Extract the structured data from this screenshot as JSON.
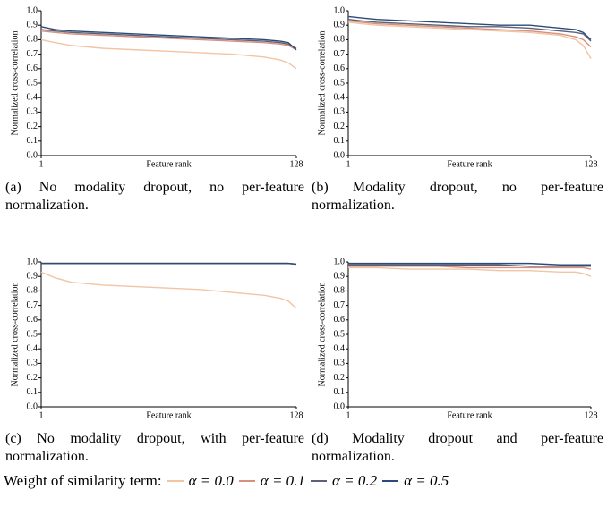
{
  "legend_title": "Weight of similarity term:",
  "chart_data": [
    {
      "type": "line",
      "caption": "(a) No modality dropout, no per-feature normalization.",
      "xlabel": "Feature rank",
      "ylabel": "Normalized cross-correlation",
      "x": [
        1,
        8,
        16,
        32,
        48,
        64,
        80,
        96,
        112,
        120,
        124,
        128
      ],
      "xlim": [
        1,
        128
      ],
      "xticks": [
        1,
        128
      ],
      "ylim": [
        0,
        1
      ],
      "yticks": [
        {
          "value": 0,
          "label": "0.0"
        },
        0.1,
        0.2,
        0.3,
        0.4,
        0.5,
        0.6,
        0.7,
        0.8,
        0.9,
        {
          "value": 1,
          "label": "1.0"
        }
      ],
      "series": [
        {
          "name": "α = 0.0",
          "color": "#f2c4a4",
          "values": [
            0.8,
            0.78,
            0.76,
            0.74,
            0.73,
            0.72,
            0.71,
            0.7,
            0.68,
            0.66,
            0.64,
            0.6
          ]
        },
        {
          "name": "α = 0.1",
          "color": "#d8907c",
          "values": [
            0.86,
            0.85,
            0.84,
            0.83,
            0.82,
            0.81,
            0.8,
            0.79,
            0.78,
            0.77,
            0.76,
            0.73
          ]
        },
        {
          "name": "α = 0.2",
          "color": "#5c6178",
          "values": [
            0.87,
            0.86,
            0.85,
            0.84,
            0.83,
            0.82,
            0.81,
            0.8,
            0.79,
            0.78,
            0.77,
            0.74
          ]
        },
        {
          "name": "α = 0.5",
          "color": "#2d4b78",
          "values": [
            0.89,
            0.87,
            0.86,
            0.85,
            0.84,
            0.83,
            0.82,
            0.81,
            0.8,
            0.79,
            0.78,
            0.73
          ]
        }
      ]
    },
    {
      "type": "line",
      "caption": "(b) Modality dropout, no per-feature normalization.",
      "xlabel": "Feature rank",
      "ylabel": "Normalized cross-correlation",
      "x": [
        1,
        8,
        16,
        32,
        48,
        64,
        80,
        96,
        112,
        120,
        124,
        128
      ],
      "xlim": [
        1,
        128
      ],
      "xticks": [
        1,
        128
      ],
      "ylim": [
        0,
        1
      ],
      "yticks": [
        {
          "value": 0,
          "label": "0.0"
        },
        0.1,
        0.2,
        0.3,
        0.4,
        0.5,
        0.6,
        0.7,
        0.8,
        0.9,
        {
          "value": 1,
          "label": "1.0"
        }
      ],
      "series": [
        {
          "name": "α = 0.0",
          "color": "#f2c4a4",
          "values": [
            0.92,
            0.91,
            0.9,
            0.89,
            0.88,
            0.87,
            0.86,
            0.85,
            0.83,
            0.8,
            0.76,
            0.67
          ]
        },
        {
          "name": "α = 0.1",
          "color": "#d8907c",
          "values": [
            0.93,
            0.92,
            0.91,
            0.9,
            0.89,
            0.88,
            0.87,
            0.86,
            0.84,
            0.82,
            0.8,
            0.75
          ]
        },
        {
          "name": "α = 0.2",
          "color": "#5c6178",
          "values": [
            0.94,
            0.93,
            0.92,
            0.91,
            0.9,
            0.89,
            0.89,
            0.88,
            0.86,
            0.85,
            0.84,
            0.79
          ]
        },
        {
          "name": "α = 0.5",
          "color": "#2d4b78",
          "values": [
            0.96,
            0.95,
            0.94,
            0.93,
            0.92,
            0.91,
            0.9,
            0.9,
            0.88,
            0.87,
            0.85,
            0.8
          ]
        }
      ]
    },
    {
      "type": "line",
      "caption": "(c) No modality dropout, with per-feature normalization.",
      "xlabel": "Feature rank",
      "ylabel": "Normalized cross-correlation",
      "x": [
        1,
        8,
        16,
        32,
        48,
        64,
        80,
        96,
        112,
        120,
        124,
        128
      ],
      "xlim": [
        1,
        128
      ],
      "xticks": [
        1,
        128
      ],
      "ylim": [
        0,
        1
      ],
      "yticks": [
        {
          "value": 0,
          "label": "0.0"
        },
        0.1,
        0.2,
        0.3,
        0.4,
        0.5,
        0.6,
        0.7,
        0.8,
        0.9,
        {
          "value": 1,
          "label": "1.0"
        }
      ],
      "series": [
        {
          "name": "α = 0.0",
          "color": "#f2c4a4",
          "values": [
            0.93,
            0.89,
            0.86,
            0.84,
            0.83,
            0.82,
            0.81,
            0.79,
            0.77,
            0.75,
            0.73,
            0.68
          ]
        },
        {
          "name": "α = 0.1",
          "color": "#d8907c",
          "values": [
            0.99,
            0.99,
            0.99,
            0.99,
            0.99,
            0.99,
            0.99,
            0.99,
            0.99,
            0.99,
            0.99,
            0.985
          ]
        },
        {
          "name": "α = 0.2",
          "color": "#5c6178",
          "values": [
            0.99,
            0.99,
            0.99,
            0.99,
            0.99,
            0.99,
            0.99,
            0.99,
            0.99,
            0.99,
            0.99,
            0.985
          ]
        },
        {
          "name": "α = 0.5",
          "color": "#2d4b78",
          "values": [
            0.99,
            0.99,
            0.99,
            0.99,
            0.99,
            0.99,
            0.99,
            0.99,
            0.99,
            0.99,
            0.99,
            0.985
          ]
        }
      ]
    },
    {
      "type": "line",
      "caption": "(d) Modality dropout and per-feature normalization.",
      "xlabel": "Feature rank",
      "ylabel": "Normalized cross-correlation",
      "x": [
        1,
        8,
        16,
        32,
        48,
        64,
        80,
        96,
        112,
        120,
        124,
        128
      ],
      "xlim": [
        1,
        128
      ],
      "xticks": [
        1,
        128
      ],
      "ylim": [
        0,
        1
      ],
      "yticks": [
        {
          "value": 0,
          "label": "0.0"
        },
        0.1,
        0.2,
        0.3,
        0.4,
        0.5,
        0.6,
        0.7,
        0.8,
        0.9,
        {
          "value": 1,
          "label": "1.0"
        }
      ],
      "series": [
        {
          "name": "α = 0.0",
          "color": "#f2c4a4",
          "values": [
            0.96,
            0.96,
            0.96,
            0.95,
            0.95,
            0.95,
            0.94,
            0.94,
            0.93,
            0.93,
            0.92,
            0.9
          ]
        },
        {
          "name": "α = 0.1",
          "color": "#d8907c",
          "values": [
            0.97,
            0.97,
            0.97,
            0.97,
            0.97,
            0.96,
            0.96,
            0.96,
            0.96,
            0.96,
            0.96,
            0.95
          ]
        },
        {
          "name": "α = 0.2",
          "color": "#5c6178",
          "values": [
            0.98,
            0.98,
            0.98,
            0.98,
            0.98,
            0.98,
            0.98,
            0.97,
            0.97,
            0.97,
            0.97,
            0.97
          ]
        },
        {
          "name": "α = 0.5",
          "color": "#2d4b78",
          "values": [
            0.99,
            0.99,
            0.99,
            0.99,
            0.99,
            0.99,
            0.99,
            0.99,
            0.98,
            0.98,
            0.98,
            0.98
          ]
        }
      ]
    }
  ]
}
